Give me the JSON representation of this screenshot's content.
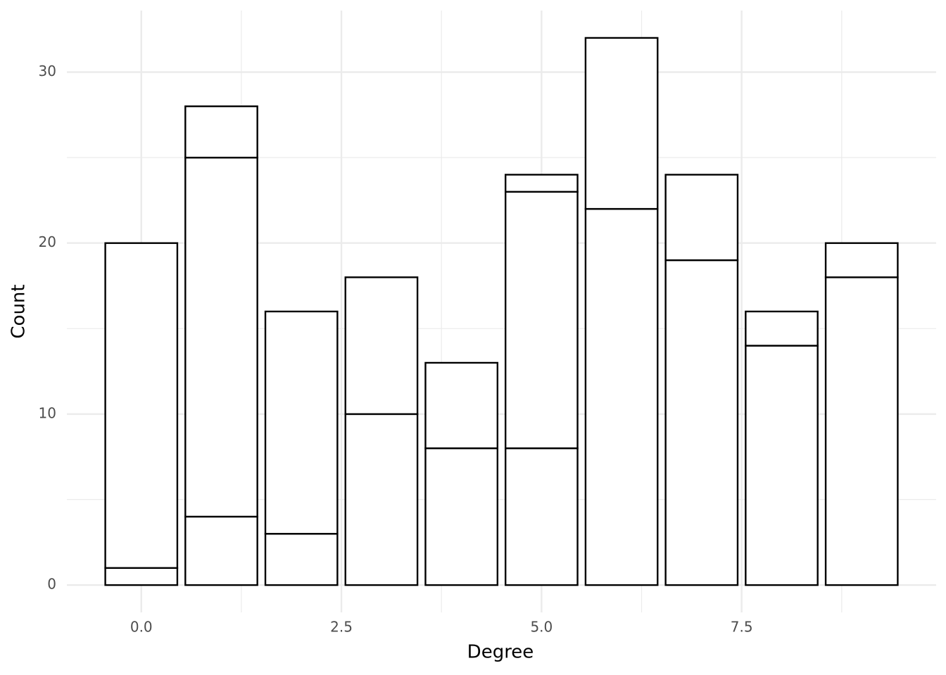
{
  "chart_data": {
    "type": "stacked_bar",
    "x_label": "Degree",
    "y_label": "Count",
    "x": [
      0,
      1,
      2,
      3,
      4,
      5,
      6,
      7,
      8,
      9
    ],
    "bar_width": 0.9,
    "series": [
      {
        "color": "#ffffff",
        "values": [
          1,
          4,
          3,
          10,
          8,
          8,
          22,
          19,
          14,
          18
        ]
      },
      {
        "color": "#ffffff",
        "values": [
          19,
          21,
          13,
          8,
          5,
          15,
          10,
          5,
          2,
          2
        ]
      },
      {
        "color": "#ffffff",
        "values": [
          null,
          3,
          null,
          null,
          null,
          1,
          null,
          null,
          null,
          null
        ]
      }
    ],
    "outline": "#000000",
    "xlim": [
      -0.93,
      9.93
    ],
    "ylim": [
      -1.6,
      33.6
    ],
    "xticks": [
      {
        "value": 0,
        "label": "0.0"
      },
      2.5,
      {
        "value": 5,
        "label": "5.0"
      },
      7.5
    ],
    "yticks": [
      0,
      10,
      20,
      30
    ],
    "xminorticks": [
      1.25,
      3.75,
      6.25,
      8.75
    ],
    "yminorticks": [
      5,
      15,
      25
    ],
    "grid": true
  }
}
